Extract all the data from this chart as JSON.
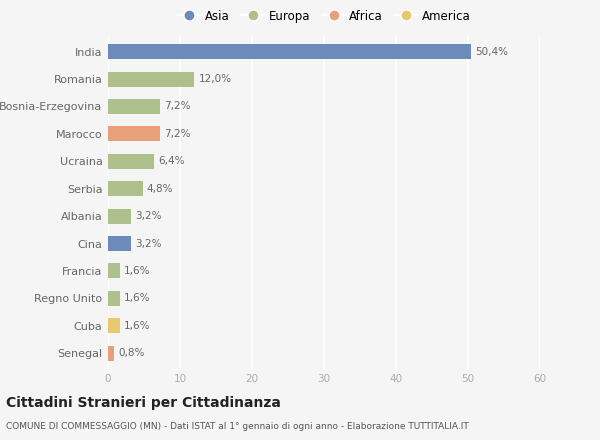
{
  "countries": [
    "Senegal",
    "Cuba",
    "Regno Unito",
    "Francia",
    "Cina",
    "Albania",
    "Serbia",
    "Ucraina",
    "Marocco",
    "Bosnia-Erzegovina",
    "Romania",
    "India"
  ],
  "values": [
    0.8,
    1.6,
    1.6,
    1.6,
    3.2,
    3.2,
    4.8,
    6.4,
    7.2,
    7.2,
    12.0,
    50.4
  ],
  "labels": [
    "0,8%",
    "1,6%",
    "1,6%",
    "1,6%",
    "3,2%",
    "3,2%",
    "4,8%",
    "6,4%",
    "7,2%",
    "7,2%",
    "12,0%",
    "50,4%"
  ],
  "bar_colors": [
    "#e8a07a",
    "#e8c96e",
    "#adbf8a",
    "#adbf8a",
    "#6b8cba",
    "#adbf8a",
    "#adbf8a",
    "#adbf8a",
    "#e8a07a",
    "#adbf8a",
    "#adbf8a",
    "#6b8cba"
  ],
  "legend_order": [
    "Asia",
    "Europa",
    "Africa",
    "America"
  ],
  "legend_colors": [
    "#6b8cba",
    "#adbf8a",
    "#e8a07a",
    "#e8c96e"
  ],
  "xlim": [
    0,
    60
  ],
  "xticks": [
    0,
    10,
    20,
    30,
    40,
    50,
    60
  ],
  "title": "Cittadini Stranieri per Cittadinanza",
  "subtitle": "COMUNE DI COMMESSAGGIO (MN) - Dati ISTAT al 1° gennaio di ogni anno - Elaborazione TUTTITALIA.IT",
  "bg_color": "#f5f5f5",
  "grid_color": "#ffffff",
  "label_color": "#666666",
  "tick_color": "#aaaaaa"
}
